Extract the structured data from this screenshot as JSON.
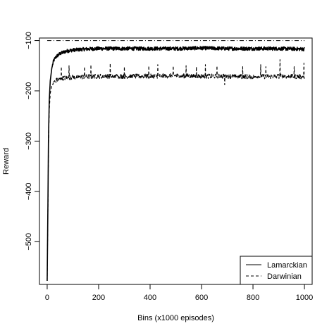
{
  "chart_data": {
    "type": "line",
    "title": "",
    "xlabel": "Bins (x1000 episodes)",
    "ylabel": "Reward",
    "xlim": [
      -30,
      1030
    ],
    "ylim": [
      -585,
      -95
    ],
    "x_ticks": [
      0,
      200,
      400,
      600,
      800,
      1000
    ],
    "y_ticks": [
      -100,
      -200,
      -300,
      -400,
      -500
    ],
    "grid": false,
    "legend_position": "bottom-right",
    "reference_line": {
      "y": -100,
      "style": "dash-dot"
    },
    "series": [
      {
        "name": "Lamarckian",
        "style": "solid",
        "points": [
          [
            0,
            -578
          ],
          [
            3,
            -420
          ],
          [
            5,
            -300
          ],
          [
            8,
            -220
          ],
          [
            12,
            -180
          ],
          [
            18,
            -155
          ],
          [
            25,
            -140
          ],
          [
            35,
            -132
          ],
          [
            50,
            -126
          ],
          [
            75,
            -121
          ],
          [
            100,
            -119
          ],
          [
            150,
            -117
          ],
          [
            200,
            -116
          ],
          [
            300,
            -116
          ],
          [
            400,
            -116
          ],
          [
            500,
            -116
          ],
          [
            600,
            -115
          ],
          [
            700,
            -116
          ],
          [
            800,
            -116
          ],
          [
            900,
            -116
          ],
          [
            1000,
            -117
          ]
        ]
      },
      {
        "name": "Darwinian",
        "style": "dashed",
        "points": [
          [
            0,
            -578
          ],
          [
            3,
            -430
          ],
          [
            5,
            -320
          ],
          [
            8,
            -240
          ],
          [
            12,
            -205
          ],
          [
            18,
            -190
          ],
          [
            25,
            -182
          ],
          [
            40,
            -178
          ],
          [
            60,
            -175
          ],
          [
            100,
            -173
          ],
          [
            150,
            -172
          ],
          [
            200,
            -171
          ],
          [
            300,
            -171
          ],
          [
            400,
            -171
          ],
          [
            500,
            -170
          ],
          [
            600,
            -171
          ],
          [
            700,
            -171
          ],
          [
            800,
            -172
          ],
          [
            900,
            -171
          ],
          [
            1000,
            -172
          ]
        ],
        "spikes": [
          [
            55,
            -152
          ],
          [
            85,
            -150
          ],
          [
            145,
            -152
          ],
          [
            170,
            -148
          ],
          [
            245,
            -145
          ],
          [
            300,
            -152
          ],
          [
            395,
            -150
          ],
          [
            430,
            -148
          ],
          [
            490,
            -150
          ],
          [
            540,
            -150
          ],
          [
            580,
            -152
          ],
          [
            615,
            -148
          ],
          [
            660,
            -150
          ],
          [
            690,
            -188
          ],
          [
            760,
            -152
          ],
          [
            830,
            -148
          ],
          [
            850,
            -152
          ],
          [
            905,
            -138
          ],
          [
            960,
            -152
          ],
          [
            998,
            -145
          ]
        ]
      }
    ]
  }
}
